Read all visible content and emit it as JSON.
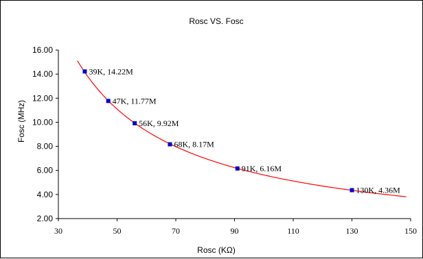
{
  "chart_data": {
    "type": "scatter",
    "title": "Rosc VS. Fosc",
    "xlabel": "Rosc (KΩ)",
    "ylabel": "Fosc (MHz)",
    "xlim": [
      30,
      150
    ],
    "ylim": [
      2.0,
      16.0
    ],
    "x_ticks": [
      30,
      50,
      70,
      90,
      110,
      130,
      150
    ],
    "y_ticks": [
      "2.00",
      "4.00",
      "6.00",
      "8.00",
      "10.00",
      "12.00",
      "14.00",
      "16.00"
    ],
    "grid": false,
    "series": [
      {
        "points": [
          {
            "x": 39,
            "y": 14.22,
            "label": "39K, 14.22M"
          },
          {
            "x": 47,
            "y": 11.77,
            "label": "47K, 11.77M"
          },
          {
            "x": 56,
            "y": 9.92,
            "label": "56K, 9.92M"
          },
          {
            "x": 68,
            "y": 8.17,
            "label": "68K, 8.17M"
          },
          {
            "x": 91,
            "y": 6.16,
            "label": "91K, 6.16M"
          },
          {
            "x": 130,
            "y": 4.36,
            "label": "130K, 4.36M"
          }
        ],
        "marker_color": "#0000cc"
      }
    ],
    "trendline": {
      "color": "#ff0000",
      "x_range": [
        36.5,
        148.5
      ]
    }
  }
}
